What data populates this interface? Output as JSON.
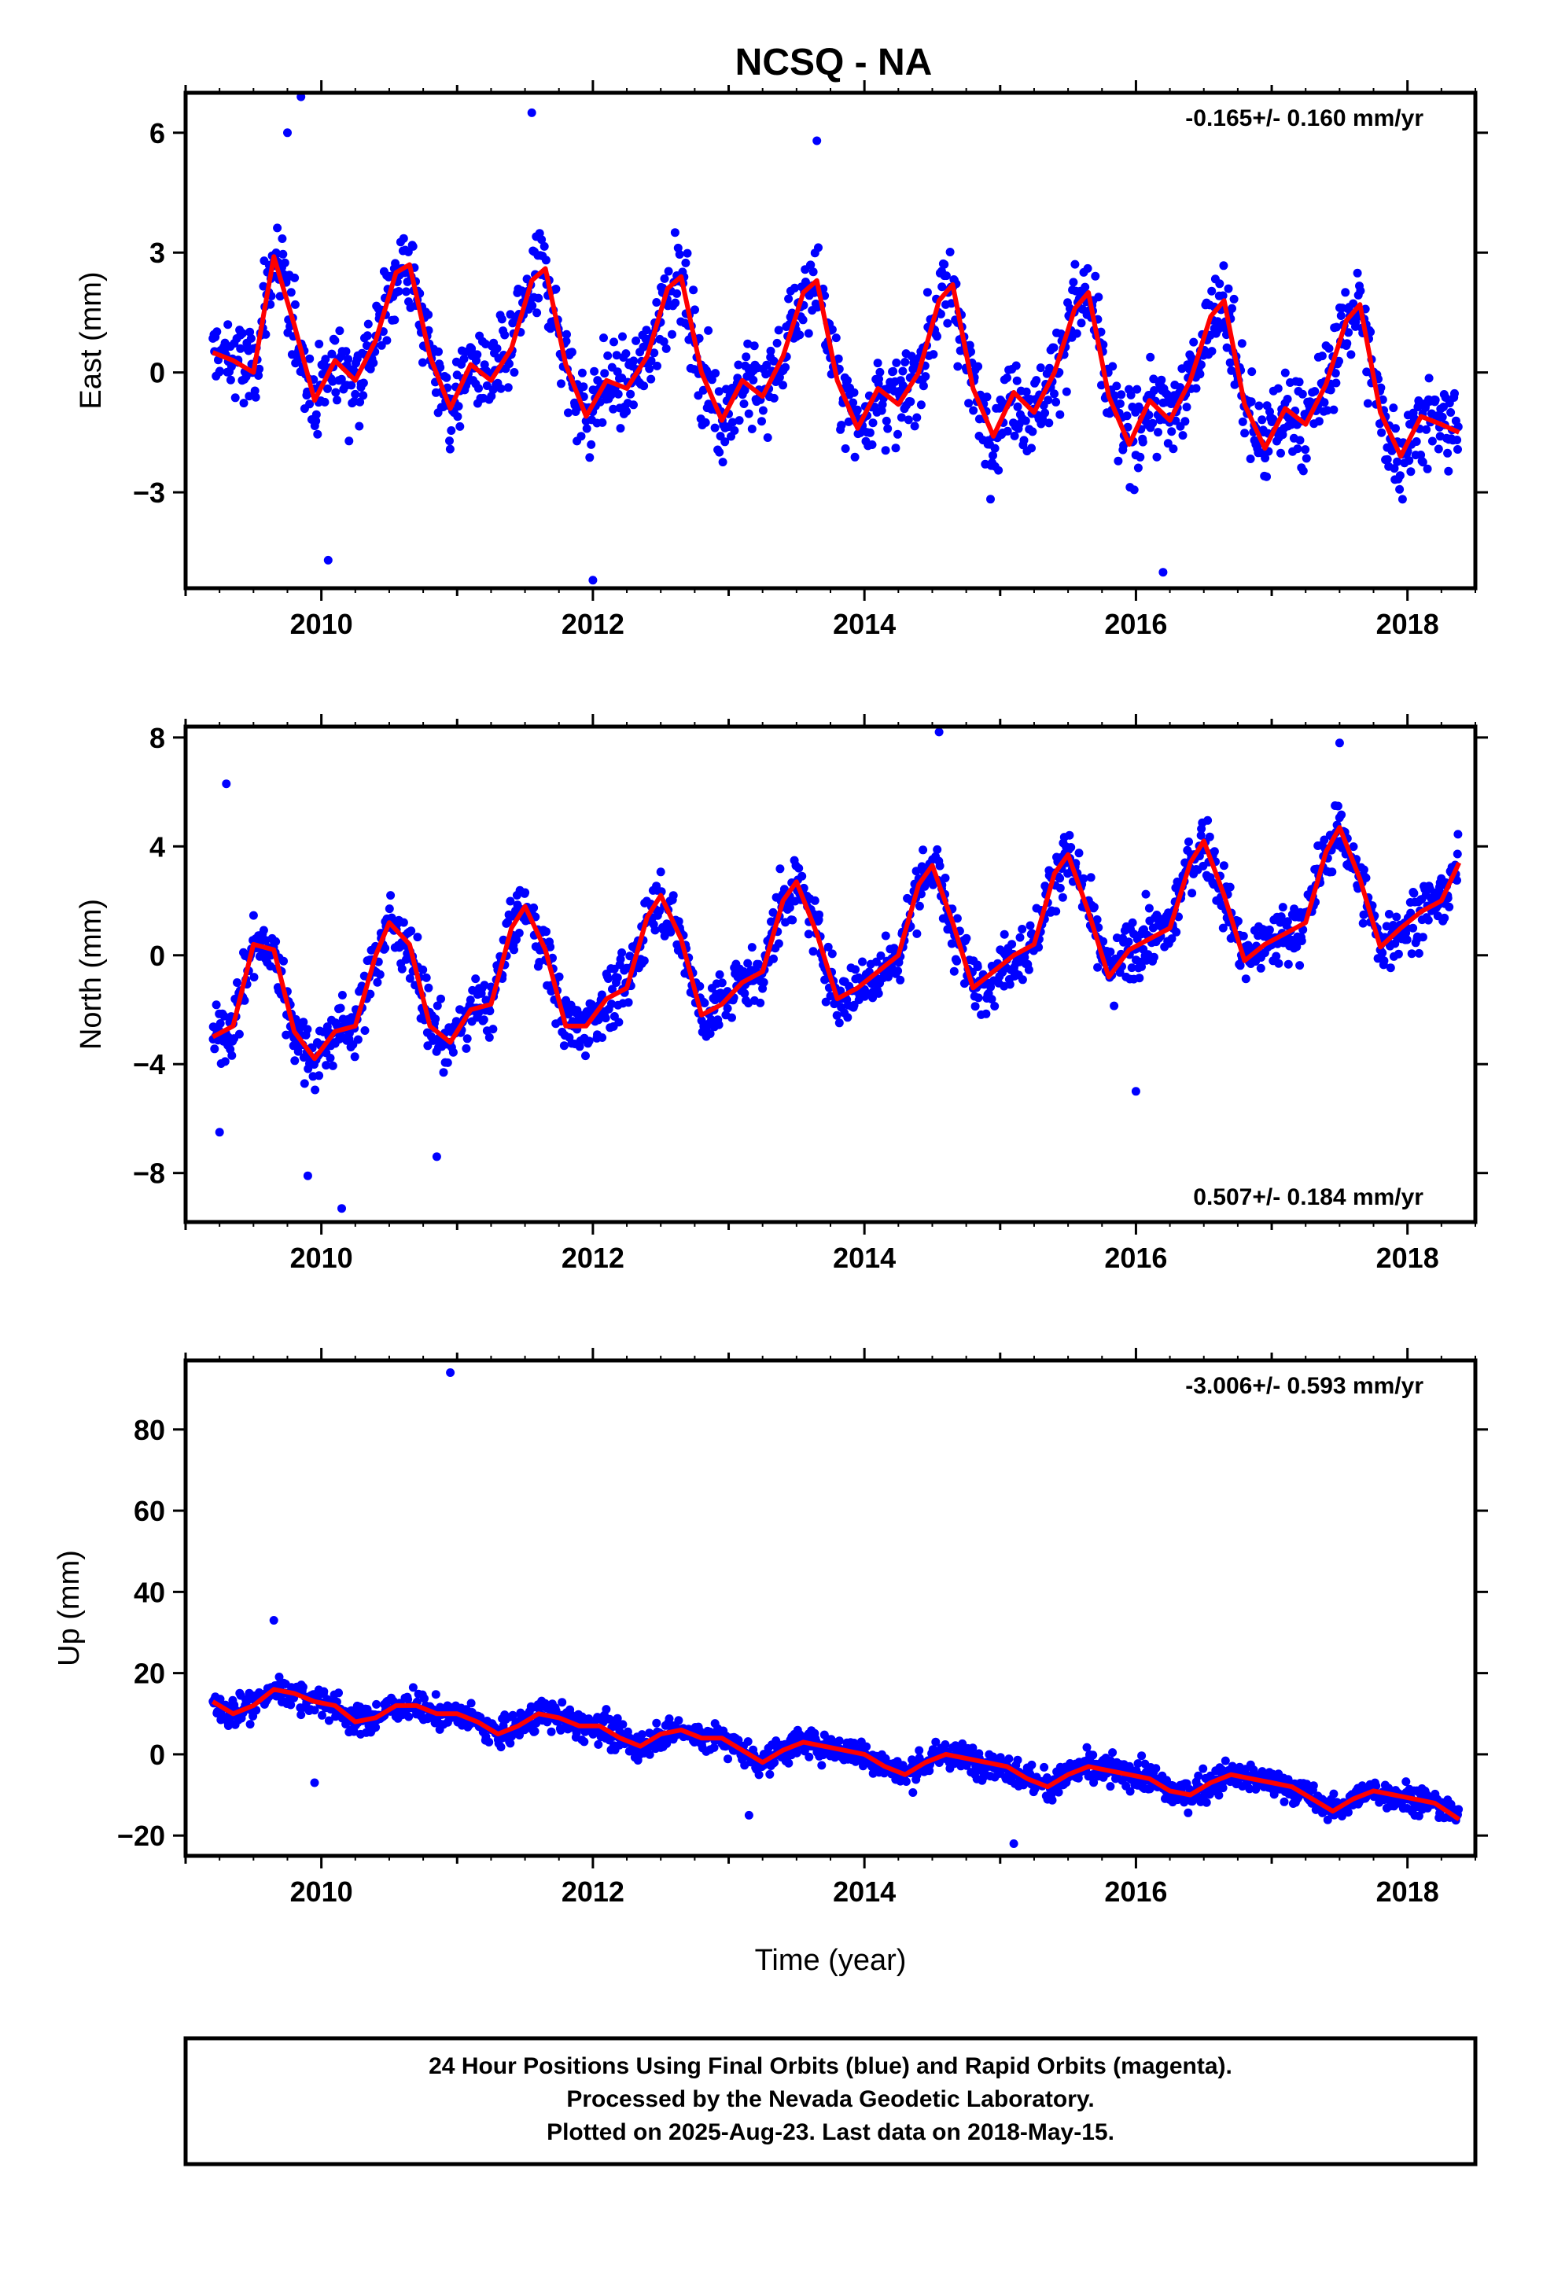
{
  "page": {
    "title": "NCSQ - NA"
  },
  "colors": {
    "final_points": "#0000ff",
    "fit_line": "#ff0000",
    "frame": "#000000"
  },
  "footer": {
    "line1": "24 Hour Positions Using Final Orbits (blue) and Rapid Orbits (magenta).",
    "line2": "Processed by the Nevada Geodetic Laboratory.",
    "line3": "Plotted on 2025-Aug-23. Last data on 2018-May-15."
  },
  "chart_data": [
    {
      "type": "scatter",
      "id": "east",
      "title": "NCSQ - NA",
      "ylabel": "East (mm)",
      "xlabel": "",
      "rate_text": "-0.165+/- 0.160 mm/yr",
      "xlim": [
        2009.0,
        2018.5
      ],
      "ylim": [
        -5.4,
        7.0
      ],
      "xticks": [
        2010,
        2012,
        2014,
        2016,
        2018
      ],
      "yticks": [
        -3,
        0,
        3,
        6
      ],
      "series": [
        {
          "kind": "fit",
          "x": [
            2009.2,
            2009.35,
            2009.5,
            2009.65,
            2009.8,
            2009.95,
            2010.1,
            2010.25,
            2010.4,
            2010.55,
            2010.65,
            2010.8,
            2010.95,
            2011.1,
            2011.25,
            2011.4,
            2011.55,
            2011.65,
            2011.8,
            2011.95,
            2012.1,
            2012.25,
            2012.4,
            2012.55,
            2012.65,
            2012.8,
            2012.95,
            2013.1,
            2013.25,
            2013.4,
            2013.55,
            2013.65,
            2013.8,
            2013.95,
            2014.1,
            2014.25,
            2014.4,
            2014.55,
            2014.65,
            2014.8,
            2014.95,
            2015.1,
            2015.25,
            2015.4,
            2015.55,
            2015.65,
            2015.8,
            2015.95,
            2016.1,
            2016.25,
            2016.4,
            2016.55,
            2016.65,
            2016.8,
            2016.95,
            2017.1,
            2017.25,
            2017.4,
            2017.55,
            2017.65,
            2017.8,
            2017.95,
            2018.1,
            2018.25,
            2018.38
          ],
          "y": [
            0.5,
            0.3,
            0.0,
            2.9,
            1.2,
            -0.7,
            0.3,
            -0.2,
            0.8,
            2.5,
            2.7,
            0.4,
            -0.9,
            0.2,
            -0.2,
            0.6,
            2.3,
            2.6,
            0.2,
            -1.1,
            -0.2,
            -0.4,
            0.4,
            2.1,
            2.4,
            0.0,
            -1.2,
            -0.2,
            -0.6,
            0.4,
            2.0,
            2.3,
            -0.2,
            -1.4,
            -0.4,
            -0.8,
            0.0,
            1.8,
            2.2,
            -0.4,
            -1.6,
            -0.5,
            -1.0,
            0.0,
            1.6,
            2.0,
            -0.6,
            -1.8,
            -0.7,
            -1.2,
            -0.2,
            1.4,
            1.8,
            -0.8,
            -1.9,
            -0.9,
            -1.3,
            -0.3,
            1.3,
            1.7,
            -1.0,
            -2.1,
            -1.1,
            -1.3,
            -1.5
          ]
        }
      ],
      "scatter": {
        "center": 0.0,
        "spread": 1.4,
        "seasonal_amp": 1.3,
        "outliers": [
          [
            2009.85,
            6.9
          ],
          [
            2012.0,
            -5.2
          ],
          [
            2016.2,
            -5.0
          ],
          [
            2009.75,
            6.0
          ],
          [
            2011.55,
            6.5
          ],
          [
            2013.65,
            5.8
          ],
          [
            2010.05,
            -4.7
          ]
        ]
      }
    },
    {
      "type": "scatter",
      "id": "north",
      "ylabel": "North (mm)",
      "xlabel": "",
      "rate_text": "0.507+/- 0.184 mm/yr",
      "xlim": [
        2009.0,
        2018.5
      ],
      "ylim": [
        -9.8,
        8.4
      ],
      "xticks": [
        2010,
        2012,
        2014,
        2016,
        2018
      ],
      "yticks": [
        -8,
        -4,
        0,
        4,
        8
      ],
      "series": [
        {
          "kind": "fit",
          "x": [
            2009.2,
            2009.35,
            2009.5,
            2009.65,
            2009.8,
            2009.95,
            2010.1,
            2010.25,
            2010.4,
            2010.5,
            2010.65,
            2010.8,
            2010.95,
            2011.1,
            2011.25,
            2011.4,
            2011.5,
            2011.65,
            2011.8,
            2011.95,
            2012.1,
            2012.25,
            2012.4,
            2012.5,
            2012.65,
            2012.8,
            2012.95,
            2013.1,
            2013.25,
            2013.4,
            2013.5,
            2013.65,
            2013.8,
            2013.95,
            2014.1,
            2014.25,
            2014.4,
            2014.5,
            2014.65,
            2014.8,
            2014.95,
            2015.1,
            2015.25,
            2015.4,
            2015.5,
            2015.65,
            2015.8,
            2015.95,
            2016.1,
            2016.25,
            2016.4,
            2016.5,
            2016.65,
            2016.8,
            2016.95,
            2017.1,
            2017.25,
            2017.4,
            2017.5,
            2017.65,
            2017.8,
            2017.95,
            2018.1,
            2018.25,
            2018.38
          ],
          "y": [
            -3.0,
            -2.6,
            0.4,
            0.2,
            -2.8,
            -3.8,
            -2.8,
            -2.6,
            0.0,
            1.2,
            0.4,
            -2.6,
            -3.2,
            -2.0,
            -1.8,
            1.0,
            1.8,
            0.2,
            -2.6,
            -2.6,
            -1.6,
            -1.2,
            1.4,
            2.2,
            0.6,
            -2.2,
            -1.8,
            -1.0,
            -0.6,
            2.0,
            2.7,
            0.8,
            -1.6,
            -1.2,
            -0.6,
            0.0,
            2.6,
            3.3,
            1.2,
            -1.2,
            -0.6,
            0.0,
            0.4,
            3.0,
            3.7,
            1.6,
            -0.8,
            0.2,
            0.6,
            1.0,
            3.4,
            4.2,
            2.2,
            -0.2,
            0.4,
            0.8,
            1.2,
            3.8,
            4.7,
            2.8,
            0.3,
            1.0,
            1.6,
            2.0,
            3.4
          ]
        }
      ],
      "scatter": {
        "center": 0.0,
        "spread": 1.4,
        "seasonal_amp": 0.0,
        "outliers": [
          [
            2009.3,
            6.3
          ],
          [
            2010.15,
            -9.3
          ],
          [
            2009.25,
            -6.5
          ],
          [
            2009.9,
            -8.1
          ],
          [
            2014.55,
            8.2
          ],
          [
            2010.85,
            -7.4
          ],
          [
            2016.0,
            -5.0
          ],
          [
            2017.5,
            7.8
          ]
        ]
      }
    },
    {
      "type": "scatter",
      "id": "up",
      "ylabel": "Up (mm)",
      "xlabel": "Time (year)",
      "rate_text": "-3.006+/- 0.593 mm/yr",
      "xlim": [
        2009.0,
        2018.5
      ],
      "ylim": [
        -25,
        97
      ],
      "xticks": [
        2010,
        2012,
        2014,
        2016,
        2018
      ],
      "yticks": [
        -20,
        0,
        20,
        40,
        60,
        80
      ],
      "series": [
        {
          "kind": "fit",
          "x": [
            2009.2,
            2009.35,
            2009.5,
            2009.65,
            2009.8,
            2009.95,
            2010.1,
            2010.25,
            2010.4,
            2010.55,
            2010.7,
            2010.85,
            2011.0,
            2011.15,
            2011.3,
            2011.45,
            2011.6,
            2011.75,
            2011.9,
            2012.05,
            2012.2,
            2012.35,
            2012.5,
            2012.65,
            2012.8,
            2012.95,
            2013.1,
            2013.25,
            2013.4,
            2013.55,
            2013.7,
            2013.85,
            2014.0,
            2014.15,
            2014.3,
            2014.45,
            2014.6,
            2014.75,
            2014.9,
            2015.05,
            2015.2,
            2015.35,
            2015.5,
            2015.65,
            2015.8,
            2015.95,
            2016.1,
            2016.25,
            2016.4,
            2016.55,
            2016.7,
            2016.85,
            2017.0,
            2017.15,
            2017.3,
            2017.45,
            2017.6,
            2017.75,
            2017.9,
            2018.05,
            2018.2,
            2018.38
          ],
          "y": [
            13,
            10,
            12,
            16,
            15,
            13,
            12,
            8,
            9,
            12,
            12,
            10,
            10,
            8,
            5,
            7,
            10,
            9,
            7,
            7,
            4,
            2,
            5,
            6,
            4,
            4,
            1,
            -2,
            1,
            3,
            2,
            1,
            0,
            -3,
            -5,
            -2,
            0,
            -1,
            -2,
            -3,
            -6,
            -8,
            -5,
            -3,
            -4,
            -5,
            -6,
            -9,
            -10,
            -7,
            -5,
            -6,
            -7,
            -8,
            -11,
            -14,
            -11,
            -9,
            -10,
            -11,
            -12,
            -16
          ]
        }
      ],
      "scatter": {
        "center": 0.0,
        "spread": 4.5,
        "seasonal_amp": 0.0,
        "outliers": [
          [
            2010.95,
            94
          ],
          [
            2009.65,
            33
          ],
          [
            2015.1,
            -22
          ],
          [
            2009.95,
            -7
          ],
          [
            2013.15,
            -15
          ]
        ]
      }
    }
  ]
}
